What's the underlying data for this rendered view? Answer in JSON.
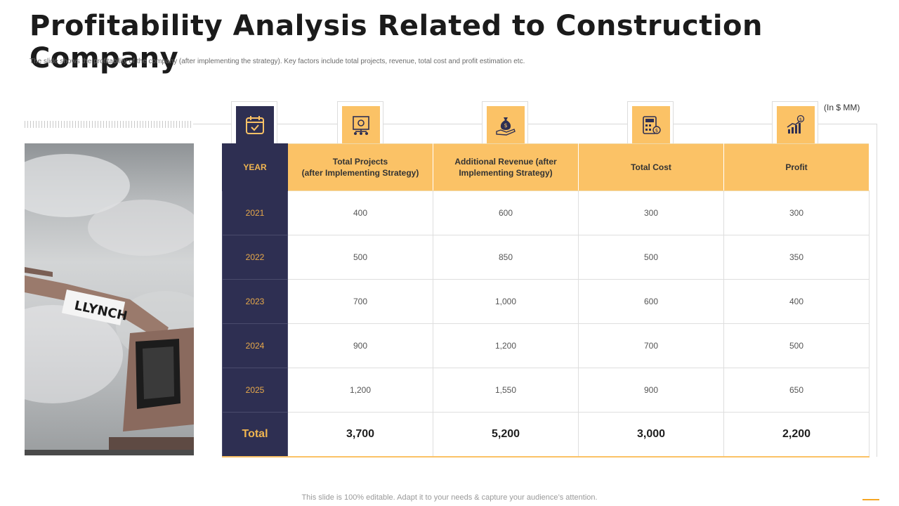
{
  "page": {
    "title": "Profitability Analysis Related to Construction Company",
    "subtitle": "The slide shows the profitability of the company (after implementing  the strategy). Key factors include total projects, revenue, total cost and profit estimation etc.",
    "unit_note": "(In $ MM)",
    "footer": "This slide is 100% editable. Adapt it to your needs & capture your audience’s attention."
  },
  "colors": {
    "navy": "#2e2f52",
    "gold": "#fbc266",
    "accent": "#f5a623"
  },
  "photo": {
    "sign_text": "LLYNCH"
  },
  "icons": [
    "calendar-check-icon",
    "org-chart-icon",
    "money-bag-hand-icon",
    "calculator-dollar-icon",
    "growth-chart-dollar-icon"
  ],
  "table": {
    "headers": {
      "year": "YEAR",
      "projects_1": "Total Projects",
      "projects_2": "(after Implementing  Strategy)",
      "revenue_1": "Additional Revenue (after",
      "revenue_2": "Implementing Strategy)",
      "cost": "Total Cost",
      "profit": "Profit"
    },
    "rows": [
      {
        "year": "2021",
        "projects": "400",
        "revenue": "600",
        "cost": "300",
        "profit": "300"
      },
      {
        "year": "2022",
        "projects": "500",
        "revenue": "850",
        "cost": "500",
        "profit": "350"
      },
      {
        "year": "2023",
        "projects": "700",
        "revenue": "1,000",
        "cost": "600",
        "profit": "400"
      },
      {
        "year": "2024",
        "projects": "900",
        "revenue": "1,200",
        "cost": "700",
        "profit": "500"
      },
      {
        "year": "2025",
        "projects": "1,200",
        "revenue": "1,550",
        "cost": "900",
        "profit": "650"
      }
    ],
    "total": {
      "label": "Total",
      "projects": "3,700",
      "revenue": "5,200",
      "cost": "3,000",
      "profit": "2,200"
    }
  }
}
